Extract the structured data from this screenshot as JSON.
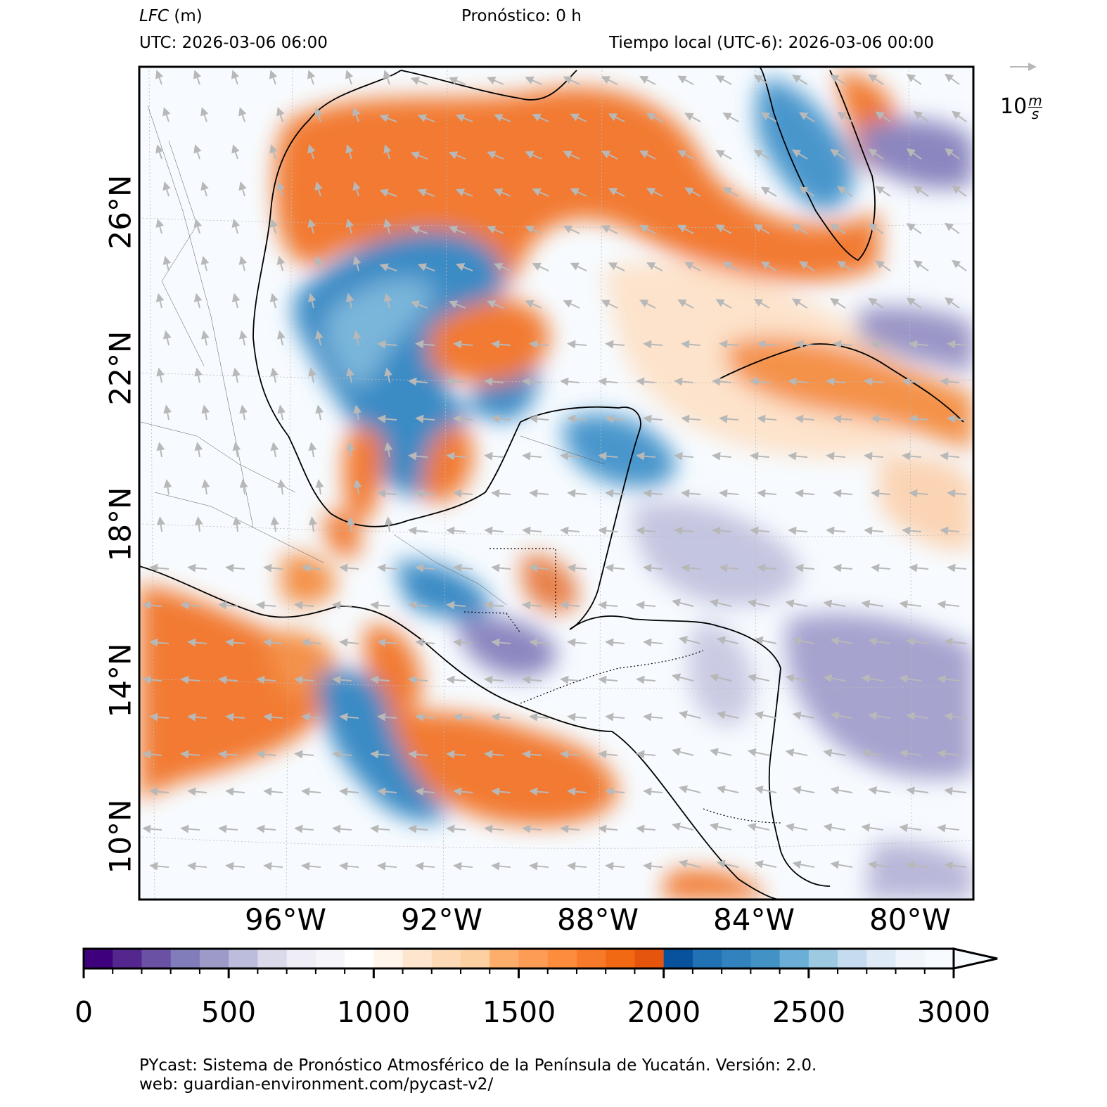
{
  "header": {
    "variable": "LFC",
    "units": "(m)",
    "forecast": "Pronóstico: 0 h",
    "utc": "UTC:  2026-03-06 06:00",
    "local": "Tiempo local (UTC-6): 2026-03-06 00:00"
  },
  "map": {
    "lat_labels": [
      "26°N",
      "22°N",
      "18°N",
      "14°N",
      "10°N"
    ],
    "lon_labels": [
      "96°W",
      "92°W",
      "88°W",
      "84°W",
      "80°W"
    ],
    "wind_reference": {
      "value": "10",
      "unit_num": "m",
      "unit_den": "s"
    }
  },
  "colorbar": {
    "ticks": [
      "0",
      "500",
      "1000",
      "1500",
      "2000",
      "2500",
      "3000"
    ],
    "min": 0,
    "max": 3000,
    "step": 100,
    "colors": [
      "#3f007d",
      "#54278f",
      "#6a51a3",
      "#807dba",
      "#9e9ac8",
      "#bcbddc",
      "#dadaeb",
      "#efedf5",
      "#f6f6fa",
      "#ffffff",
      "#fff5eb",
      "#fee6ce",
      "#fdd9b5",
      "#fdd0a2",
      "#fdae6b",
      "#fd9c55",
      "#fd8d3c",
      "#f77a2a",
      "#f16913",
      "#e6550d",
      "#08519c",
      "#2171b5",
      "#3182bd",
      "#4292c6",
      "#6baed6",
      "#9ecae1",
      "#c6dbef",
      "#deebf7",
      "#eff5fb",
      "#f7fbff"
    ]
  },
  "footer": {
    "line1": "PYcast: Sistema de Pronóstico Atmosférico de la Península de Yucatán. Versión: 2.0.",
    "line2": "web: guardian-environment.com/pycast-v2/"
  }
}
